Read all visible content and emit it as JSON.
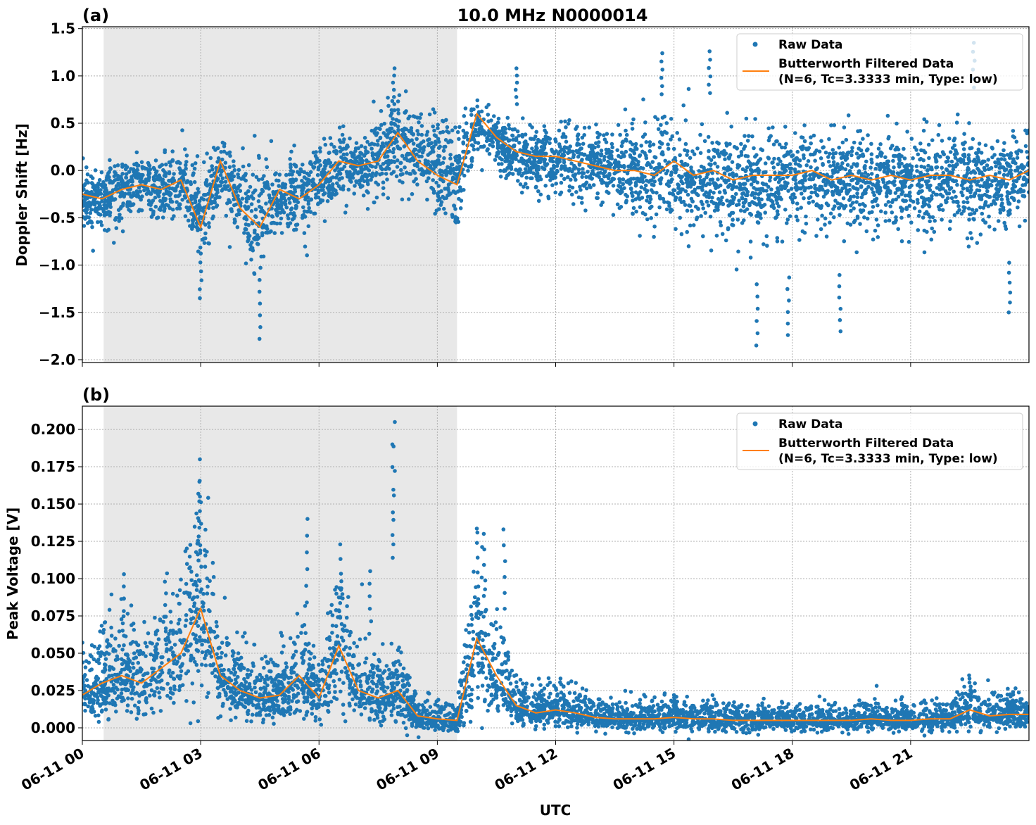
{
  "chart_data": [
    {
      "type": "scatter",
      "panel_label": "(a)",
      "title": "10.0 MHz N0000014",
      "xlabel": "",
      "ylabel": "Doppler Shift [Hz]",
      "xlim_hours": [
        0,
        24
      ],
      "ylim": [
        -2.03,
        1.52
      ],
      "yticks": [
        -2.0,
        -1.5,
        -1.0,
        -0.5,
        0.0,
        0.5,
        1.0,
        1.5
      ],
      "ytick_labels": [
        "−2.0",
        "−1.5",
        "−1.0",
        "−0.5",
        "0.0",
        "0.5",
        "1.0",
        "1.5"
      ],
      "grid": true,
      "legend_position": "top-right",
      "shaded_interval_hours": [
        0.54,
        9.5
      ],
      "shade_color": "#e8e8e8",
      "x_hours": [
        0,
        0.5,
        1,
        1.5,
        2,
        2.5,
        3,
        3.5,
        4,
        4.5,
        5,
        5.5,
        6,
        6.5,
        7,
        7.5,
        8,
        8.5,
        9,
        9.5,
        10,
        10.5,
        11,
        11.5,
        12,
        12.5,
        13,
        13.5,
        14,
        14.5,
        15,
        15.5,
        16,
        16.5,
        17,
        17.5,
        18,
        18.5,
        19,
        19.5,
        20,
        20.5,
        21,
        21.5,
        22,
        22.5,
        23,
        23.5,
        24
      ],
      "series": [
        {
          "name": "Raw Data",
          "kind": "scatter",
          "color": "#1f77b4",
          "center": [
            -0.3,
            -0.3,
            -0.2,
            -0.15,
            -0.2,
            -0.12,
            -0.5,
            0.0,
            -0.3,
            -0.5,
            -0.25,
            -0.3,
            -0.15,
            0.05,
            0.0,
            0.1,
            0.35,
            0.15,
            0.05,
            -0.1,
            0.45,
            0.3,
            0.15,
            0.12,
            0.1,
            0.1,
            0.05,
            0.0,
            -0.05,
            -0.05,
            0.0,
            -0.1,
            -0.1,
            -0.15,
            -0.15,
            -0.15,
            -0.1,
            -0.1,
            -0.1,
            -0.1,
            -0.15,
            -0.1,
            -0.1,
            -0.1,
            -0.1,
            -0.15,
            -0.1,
            -0.1,
            -0.05
          ],
          "spread": [
            0.35,
            0.35,
            0.35,
            0.35,
            0.38,
            0.4,
            0.6,
            0.45,
            0.5,
            0.6,
            0.5,
            0.45,
            0.4,
            0.4,
            0.4,
            0.45,
            0.5,
            0.5,
            0.55,
            0.55,
            0.3,
            0.3,
            0.35,
            0.35,
            0.35,
            0.4,
            0.4,
            0.45,
            0.5,
            0.5,
            0.55,
            0.55,
            0.55,
            0.6,
            0.6,
            0.6,
            0.6,
            0.55,
            0.55,
            0.55,
            0.55,
            0.55,
            0.55,
            0.55,
            0.55,
            0.55,
            0.55,
            0.5,
            0.5
          ],
          "extremes": [
            [
              4.5,
              -1.78
            ],
            [
              3.0,
              -1.35
            ],
            [
              7.9,
              1.08
            ],
            [
              11.0,
              1.08
            ],
            [
              14.7,
              1.24
            ],
            [
              15.9,
              1.26
            ],
            [
              17.1,
              -1.85
            ],
            [
              17.9,
              -1.74
            ],
            [
              19.2,
              -1.7
            ],
            [
              22.6,
              1.35
            ],
            [
              23.5,
              -1.5
            ]
          ]
        },
        {
          "name": "Butterworth Filtered Data\n(N=6, Tc=3.3333 min, Type: low)",
          "kind": "line",
          "color": "#ff7f0e",
          "values": [
            -0.25,
            -0.3,
            -0.2,
            -0.15,
            -0.2,
            -0.1,
            -0.6,
            0.1,
            -0.4,
            -0.6,
            -0.2,
            -0.3,
            -0.15,
            0.1,
            0.05,
            0.1,
            0.4,
            0.1,
            -0.05,
            -0.15,
            0.6,
            0.35,
            0.2,
            0.15,
            0.15,
            0.1,
            0.05,
            0.0,
            0.0,
            -0.05,
            0.1,
            -0.05,
            0.0,
            -0.1,
            -0.05,
            -0.05,
            -0.05,
            0.0,
            -0.1,
            -0.05,
            -0.1,
            -0.05,
            -0.1,
            -0.05,
            -0.05,
            -0.1,
            -0.05,
            -0.1,
            0.0
          ]
        }
      ]
    },
    {
      "type": "scatter",
      "panel_label": "(b)",
      "xlabel": "UTC",
      "ylabel": "Peak Voltage [V]",
      "xlim_hours": [
        0,
        24
      ],
      "ylim": [
        -0.0085,
        0.2156
      ],
      "yticks": [
        0.0,
        0.025,
        0.05,
        0.075,
        0.1,
        0.125,
        0.15,
        0.175,
        0.2
      ],
      "ytick_labels": [
        "0.000",
        "0.025",
        "0.050",
        "0.075",
        "0.100",
        "0.125",
        "0.150",
        "0.175",
        "0.200"
      ],
      "xticks_hours": [
        0,
        3,
        6,
        9,
        12,
        15,
        18,
        21
      ],
      "xtick_labels": [
        "06-11 00",
        "06-11 03",
        "06-11 06",
        "06-11 09",
        "06-11 12",
        "06-11 15",
        "06-11 18",
        "06-11 21"
      ],
      "grid": true,
      "legend_position": "top-right",
      "shaded_interval_hours": [
        0.54,
        9.5
      ],
      "x_hours": [
        0,
        0.5,
        1,
        1.5,
        2,
        2.5,
        3,
        3.5,
        4,
        4.5,
        5,
        5.5,
        6,
        6.5,
        7,
        7.5,
        8,
        8.5,
        9,
        9.5,
        10,
        10.5,
        11,
        11.5,
        12,
        12.5,
        13,
        13.5,
        14,
        14.5,
        15,
        15.5,
        16,
        16.5,
        17,
        17.5,
        18,
        18.5,
        19,
        19.5,
        20,
        20.5,
        21,
        21.5,
        22,
        22.5,
        23,
        23.5,
        24
      ],
      "series": [
        {
          "name": "Raw Data",
          "kind": "scatter",
          "color": "#1f77b4",
          "extremes": [
            [
              3.0,
              0.18
            ],
            [
              2.95,
              0.165
            ],
            [
              5.7,
              0.14
            ],
            [
              6.55,
              0.123
            ],
            [
              7.9,
              0.205
            ],
            [
              7.88,
              0.19
            ],
            [
              7.3,
              0.105
            ],
            [
              10.0,
              0.124
            ],
            [
              10.2,
              0.13
            ],
            [
              10.7,
              0.133
            ],
            [
              1.05,
              0.103
            ],
            [
              2.1,
              0.098
            ],
            [
              15.0,
              0.022
            ],
            [
              22.5,
              0.033
            ]
          ]
        },
        {
          "name": "Butterworth Filtered Data\n(N=6, Tc=3.3333 min, Type: low)",
          "kind": "line",
          "color": "#ff7f0e",
          "values": [
            0.022,
            0.03,
            0.035,
            0.03,
            0.04,
            0.05,
            0.08,
            0.035,
            0.025,
            0.02,
            0.022,
            0.035,
            0.02,
            0.055,
            0.025,
            0.02,
            0.025,
            0.008,
            0.006,
            0.005,
            0.06,
            0.035,
            0.015,
            0.01,
            0.012,
            0.01,
            0.007,
            0.006,
            0.006,
            0.006,
            0.007,
            0.006,
            0.006,
            0.005,
            0.005,
            0.005,
            0.005,
            0.005,
            0.005,
            0.005,
            0.006,
            0.005,
            0.005,
            0.006,
            0.006,
            0.012,
            0.008,
            0.009,
            0.009
          ]
        }
      ]
    }
  ],
  "legend": {
    "raw": "Raw Data",
    "filtered_line1": "Butterworth Filtered Data",
    "filtered_line2": "(N=6, Tc=3.3333 min, Type: low)"
  }
}
